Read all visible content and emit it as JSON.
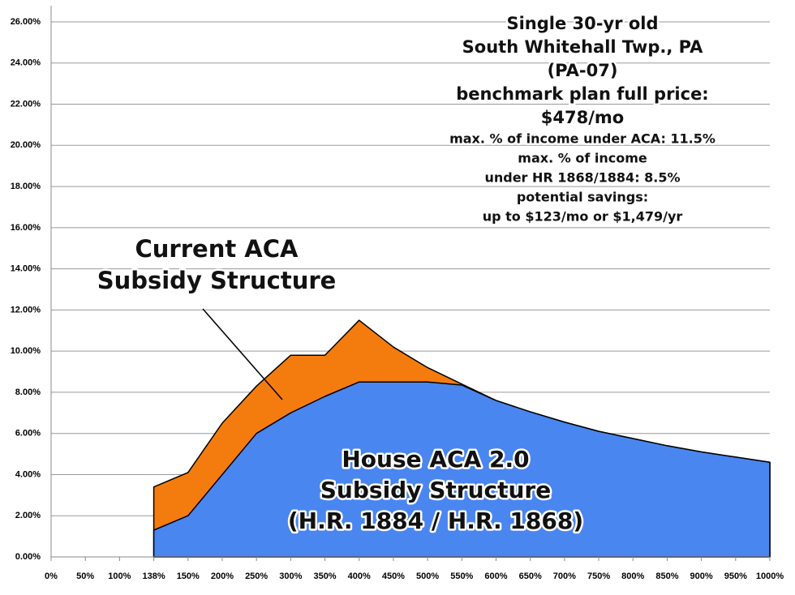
{
  "chart_data": {
    "type": "area",
    "categories": [
      "0%",
      "50%",
      "100%",
      "138%",
      "150%",
      "200%",
      "250%",
      "300%",
      "350%",
      "400%",
      "450%",
      "500%",
      "550%",
      "600%",
      "650%",
      "700%",
      "750%",
      "800%",
      "850%",
      "900%",
      "950%",
      "1000%"
    ],
    "series": [
      {
        "name": "Current ACA Subsidy Structure",
        "color": "#f47c0f",
        "values": [
          null,
          null,
          null,
          3.4,
          4.1,
          6.5,
          8.3,
          9.8,
          9.8,
          11.5,
          10.2,
          9.2,
          8.4,
          7.6,
          7.05,
          6.55,
          6.1,
          5.75,
          5.4,
          5.1,
          4.85,
          4.6
        ]
      },
      {
        "name": "House ACA 2.0 Subsidy Structure (H.R. 1884 / H.R. 1868)",
        "color": "#4a86f0",
        "values": [
          null,
          null,
          null,
          1.3,
          2.0,
          4.0,
          6.0,
          7.0,
          7.8,
          8.5,
          8.5,
          8.5,
          8.35,
          7.6,
          7.05,
          6.55,
          6.1,
          5.75,
          5.4,
          5.1,
          4.85,
          4.6
        ]
      }
    ],
    "ylim": [
      0,
      26
    ],
    "yticks": [
      {
        "value": 0,
        "label": "0.00%"
      },
      {
        "value": 2,
        "label": "2.00%"
      },
      {
        "value": 4,
        "label": "4.00%"
      },
      {
        "value": 6,
        "label": "6.00%"
      },
      {
        "value": 8,
        "label": "8.00%"
      },
      {
        "value": 10,
        "label": "10.00%"
      },
      {
        "value": 12,
        "label": "12.00%"
      },
      {
        "value": 14,
        "label": "14.00%"
      },
      {
        "value": 16,
        "label": "16.00%"
      },
      {
        "value": 18,
        "label": "18.00%"
      },
      {
        "value": 20,
        "label": "20.00%"
      },
      {
        "value": 22,
        "label": "22.00%"
      },
      {
        "value": 24,
        "label": "24.00%"
      },
      {
        "value": 26,
        "label": "26.00%"
      }
    ],
    "grid": true,
    "annotations": {
      "current_label": [
        "Current ACA",
        "Subsidy Structure"
      ],
      "house_label": [
        "House ACA 2.0",
        "Subsidy Structure",
        "(H.R. 1884 / H.R. 1868)"
      ],
      "info_large": [
        "Single 30-yr old",
        "South Whitehall Twp., PA",
        "(PA-07)",
        "benchmark plan full price:",
        "$478/mo"
      ],
      "info_small": [
        "max. % of income under ACA: 11.5%",
        "max. % of income",
        "under HR 1868/1884: 8.5%",
        "potential savings:",
        "up to $123/mo or $1,479/yr"
      ]
    }
  }
}
